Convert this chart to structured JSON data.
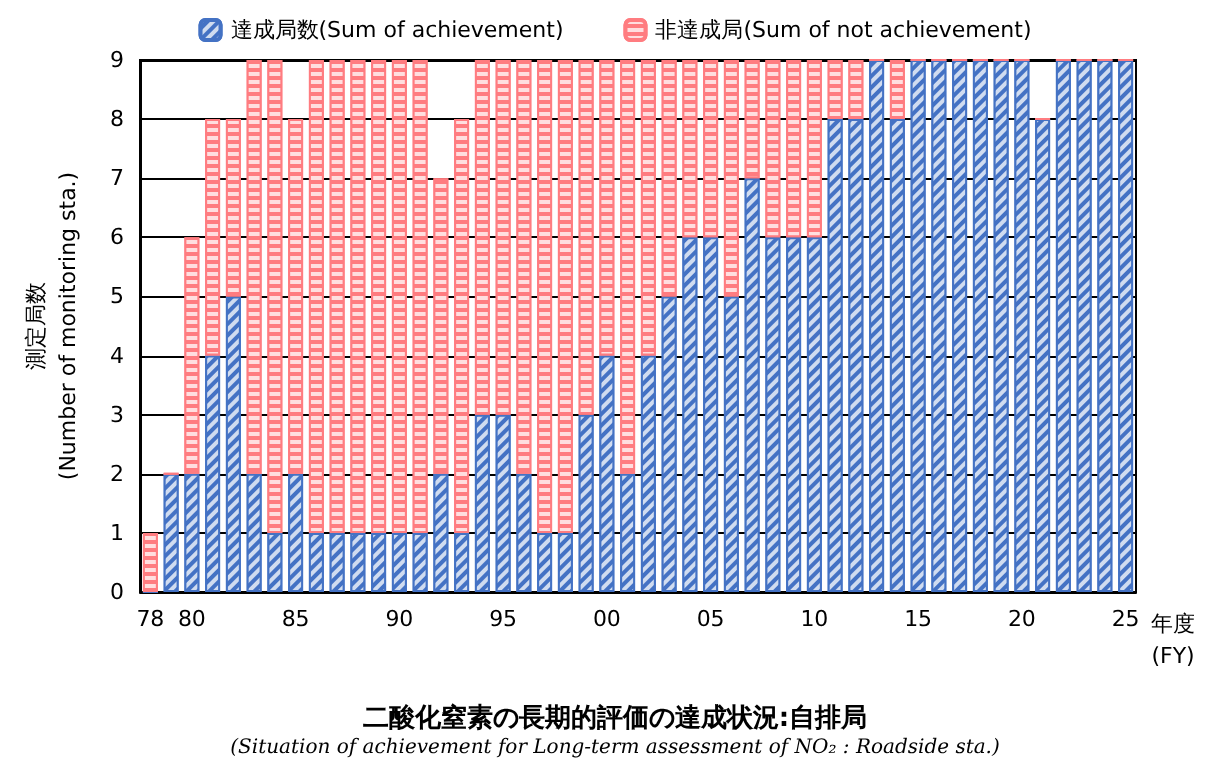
{
  "chart_data": {
    "type": "bar",
    "title": "二酸化窒素の長期的評価の達成状況:自排局",
    "subtitle": "(Situation of achievement for Long-term assessment of NO₂ : Roadside sta.)",
    "xlabel": "年度\n(FY)",
    "ylabel": "測定局数\n(Number of monitoring sta.)",
    "categories": [
      "78",
      null,
      "80",
      null,
      null,
      null,
      null,
      "85",
      null,
      null,
      null,
      null,
      "90",
      null,
      null,
      null,
      null,
      "95",
      null,
      null,
      null,
      null,
      "00",
      null,
      null,
      null,
      null,
      "05",
      null,
      null,
      null,
      null,
      "10",
      null,
      null,
      null,
      null,
      "15",
      null,
      null,
      null,
      null,
      "20",
      null,
      null,
      null,
      null,
      "25"
    ],
    "stacked": true,
    "ylim": [
      0,
      9
    ],
    "yticks": [
      0,
      1,
      2,
      3,
      4,
      5,
      6,
      7,
      8,
      9
    ],
    "grid": "y",
    "legend": "top",
    "series": [
      {
        "name": "達成局数(Sum of achievement)",
        "color": "#4472c4",
        "values": [
          0,
          2,
          2,
          4,
          5,
          2,
          1,
          2,
          1,
          1,
          1,
          1,
          1,
          1,
          2,
          1,
          3,
          3,
          2,
          1,
          1,
          3,
          4,
          2,
          4,
          5,
          6,
          6,
          5,
          7,
          6,
          6,
          6,
          8,
          8,
          9,
          8,
          9,
          9,
          9,
          9,
          9,
          9,
          8,
          9,
          9,
          9,
          9
        ]
      },
      {
        "name": "非達成局(Sum of not achievement)",
        "color": "#ff7c80",
        "values": [
          1,
          0,
          4,
          4,
          3,
          7,
          8,
          6,
          8,
          8,
          8,
          8,
          8,
          8,
          5,
          7,
          6,
          6,
          7,
          8,
          8,
          6,
          5,
          7,
          5,
          4,
          3,
          3,
          4,
          2,
          3,
          3,
          3,
          1,
          1,
          0,
          1,
          0,
          0,
          0,
          0,
          0,
          0,
          0,
          0,
          0,
          0,
          0
        ]
      }
    ]
  }
}
